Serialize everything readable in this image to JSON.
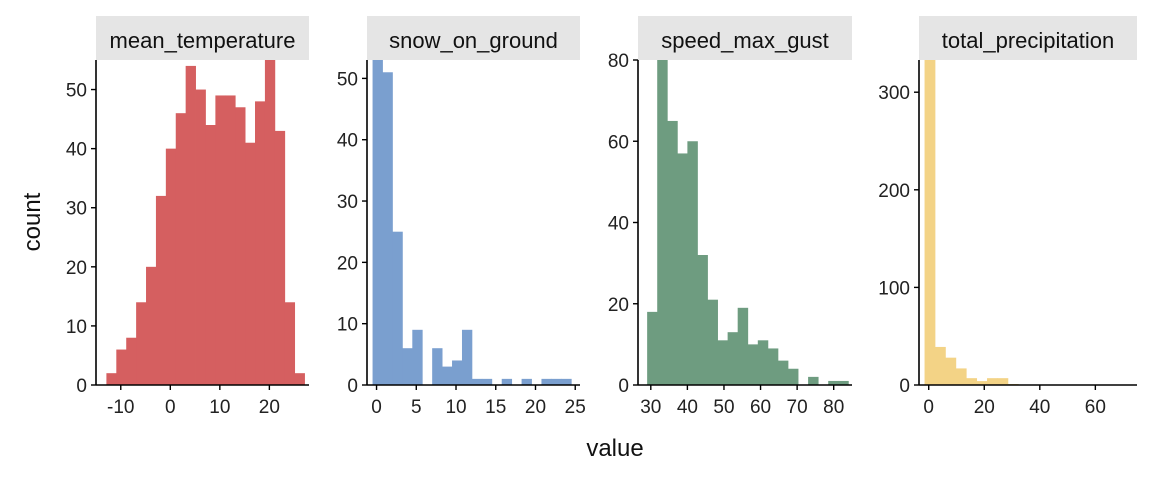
{
  "xlabel": "value",
  "ylabel": "count",
  "strip_color": "#e5e5e5",
  "chart_data": [
    {
      "type": "bar",
      "title": "mean_temperature",
      "color": "#d55f60",
      "xlim": [
        -15,
        28
      ],
      "ylim": [
        0,
        55
      ],
      "xticks": [
        -10,
        0,
        10,
        20
      ],
      "yticks": [
        0,
        10,
        20,
        30,
        40,
        50
      ],
      "bin_start": -12.9,
      "bin_width": 2.0,
      "counts": [
        2,
        6,
        8,
        14,
        20,
        32,
        40,
        46,
        54,
        50,
        44,
        49,
        49,
        47,
        41,
        48,
        55,
        43,
        14,
        2
      ]
    },
    {
      "type": "bar",
      "title": "snow_on_ground",
      "color": "#7a9fcf",
      "xlim": [
        -1.2,
        25.6
      ],
      "ylim": [
        0,
        53
      ],
      "xticks": [
        0,
        5,
        10,
        15,
        20,
        25
      ],
      "yticks": [
        0,
        10,
        20,
        30,
        40,
        50
      ],
      "bin_start": -0.5,
      "bin_width": 1.25,
      "counts": [
        53,
        51,
        25,
        6,
        9,
        0,
        6,
        3,
        4,
        9,
        1,
        1,
        0,
        1,
        0,
        1,
        0,
        1,
        1,
        1
      ]
    },
    {
      "type": "bar",
      "title": "speed_max_gust",
      "color": "#6e9c80",
      "xlim": [
        26.5,
        85
      ],
      "ylim": [
        0,
        80
      ],
      "xticks": [
        30,
        40,
        50,
        60,
        70,
        80
      ],
      "yticks": [
        0,
        20,
        40,
        60,
        80
      ],
      "bin_start": 29,
      "bin_width": 2.75,
      "counts": [
        18,
        80,
        65,
        57,
        60,
        32,
        21,
        11,
        13,
        19,
        10,
        11,
        9,
        6,
        4,
        0,
        2,
        0,
        1,
        1
      ]
    },
    {
      "type": "bar",
      "title": "total_precipitation",
      "color": "#f3d386",
      "xlim": [
        -3.5,
        75
      ],
      "ylim": [
        0,
        333
      ],
      "xticks": [
        0,
        20,
        40,
        60
      ],
      "yticks": [
        0,
        100,
        200,
        300
      ],
      "bin_start": -1.5,
      "bin_width": 3.75,
      "counts": [
        333,
        39,
        28,
        17,
        7,
        4,
        7,
        7,
        1,
        0,
        0,
        0,
        0,
        0,
        0,
        0,
        0,
        0,
        0,
        0
      ]
    }
  ]
}
